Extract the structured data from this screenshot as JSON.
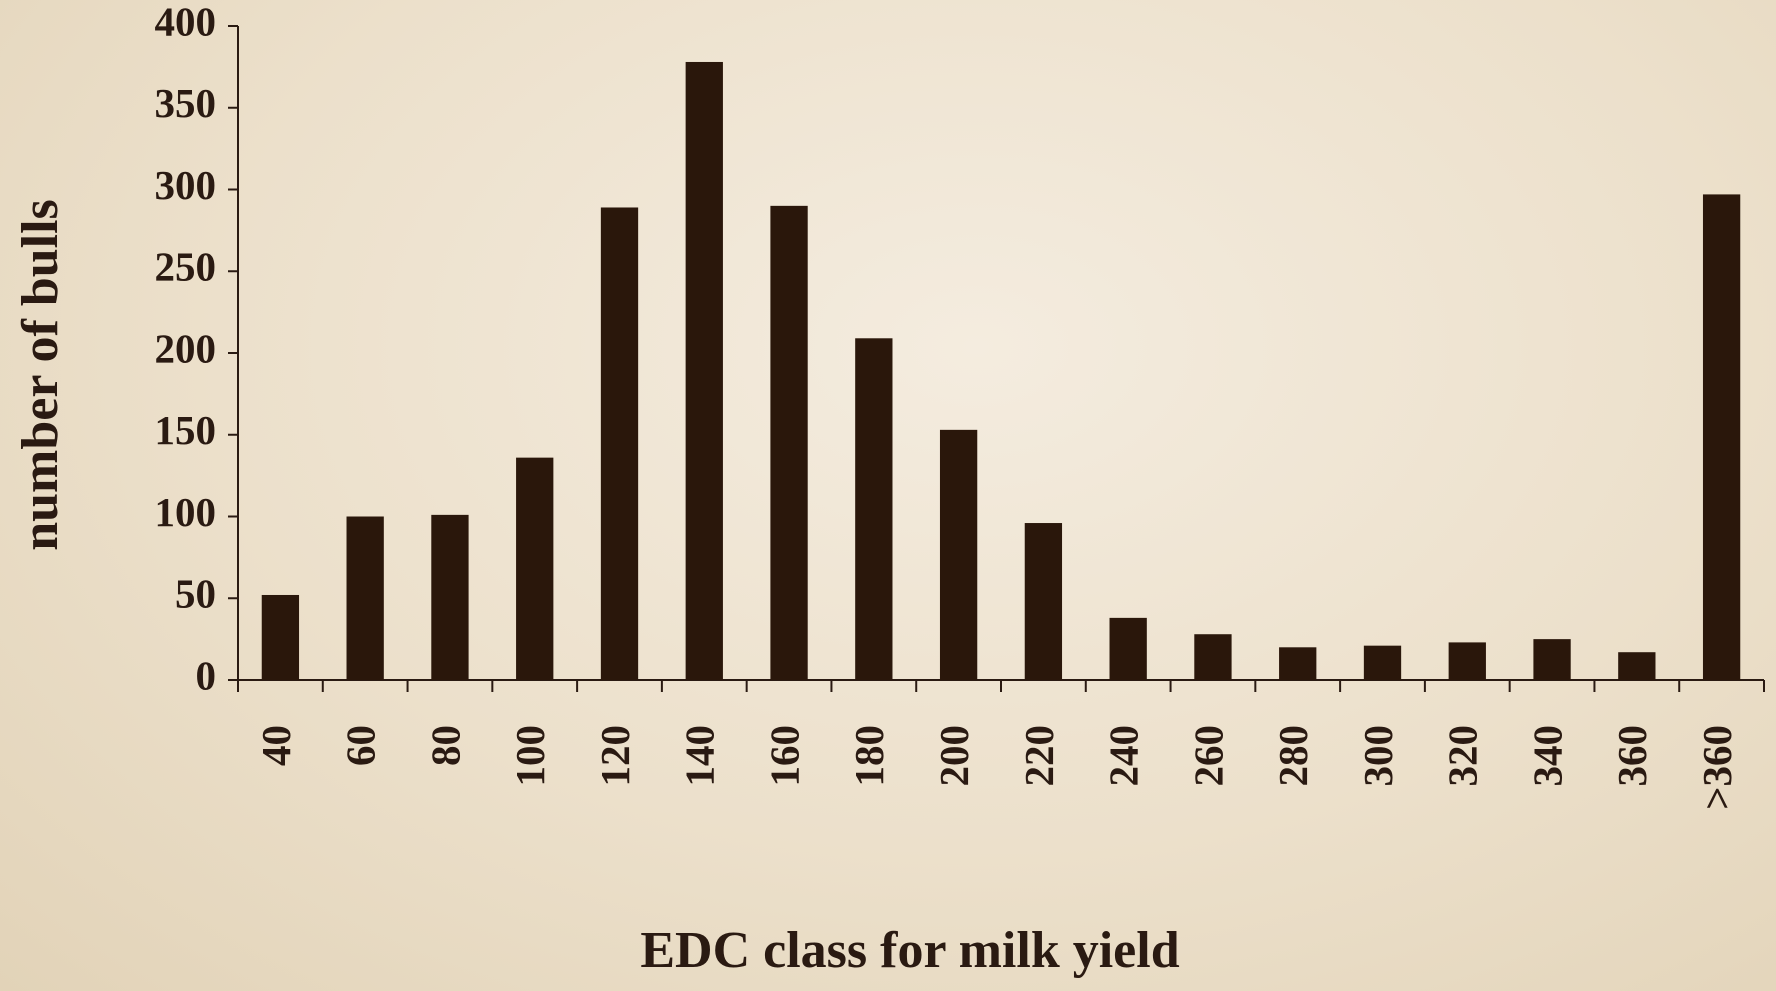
{
  "chart_data": {
    "type": "bar",
    "xlabel": "EDC class for milk yield",
    "ylabel": "number of bulls",
    "categories": [
      "40",
      "60",
      "80",
      "100",
      "120",
      "140",
      "160",
      "180",
      "200",
      "220",
      "240",
      "260",
      "280",
      "300",
      "320",
      "340",
      "360",
      ">360"
    ],
    "values": [
      52,
      100,
      101,
      136,
      289,
      378,
      290,
      209,
      153,
      96,
      38,
      28,
      20,
      21,
      23,
      25,
      17,
      297
    ],
    "color": "#2a170b",
    "ylim": [
      0,
      400
    ],
    "yticks": [
      0,
      50,
      100,
      150,
      200,
      250,
      300,
      350,
      400
    ],
    "grid": false
  }
}
